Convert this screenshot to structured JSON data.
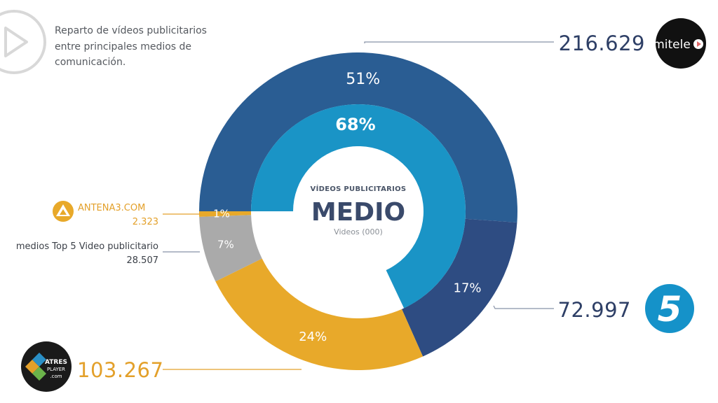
{
  "colors": {
    "mitele": "#2a5d93",
    "telecinco": "#2e4c82",
    "atresplayer": "#e8a92a",
    "others": "#aaaaaa",
    "antena3": "#e8a92a",
    "inner": "#1a94c6",
    "navy_text": "#2e3f66",
    "gold_text": "#e3a02a"
  },
  "header": {
    "subtitle_lines": [
      "Reparto de vídeos publicitarios",
      "entre principales medios de",
      "comunicación."
    ]
  },
  "center": {
    "small": "VÍDEOS PUBLICITARIOS",
    "big": "MEDIO",
    "unit": "Videos (000)"
  },
  "chart_data": {
    "type": "pie",
    "subtype": "donut",
    "unit": "Videos (000)",
    "outer_ring": [
      {
        "name": "mitele",
        "value": 216.629,
        "percent_label": "51%",
        "icon": "mitele-logo"
      },
      {
        "name": "Telecinco",
        "value": 72.997,
        "percent_label": "17%",
        "icon": "telecinco-5-logo"
      },
      {
        "name": "Atresplayer",
        "value": 103.267,
        "percent_label": "24%",
        "icon": "atresplayer-logo"
      },
      {
        "name": "medios Top 5 Video publicitario",
        "value": 28.507,
        "percent_label": "7%"
      },
      {
        "name": "ANTENA3.COM",
        "value": 2.323,
        "percent_label": "1%",
        "icon": "antena3-logo"
      }
    ],
    "inner_ring": [
      {
        "value": 68,
        "percent_label": "68%"
      }
    ]
  },
  "labels": {
    "mitele": {
      "value": "216.629",
      "logo_text": "mitele"
    },
    "telecinco": {
      "value": "72.997",
      "logo_text": "5"
    },
    "atresplayer": {
      "value": "103.267",
      "logo_text_1": "ATRES",
      "logo_text_2": "PLAYER",
      "logo_text_3": ".com"
    },
    "antena3": {
      "name": "ANTENA3.COM",
      "value": "2.323"
    },
    "others": {
      "name": "medios Top 5  Video publicitario",
      "value": "28.507"
    }
  }
}
